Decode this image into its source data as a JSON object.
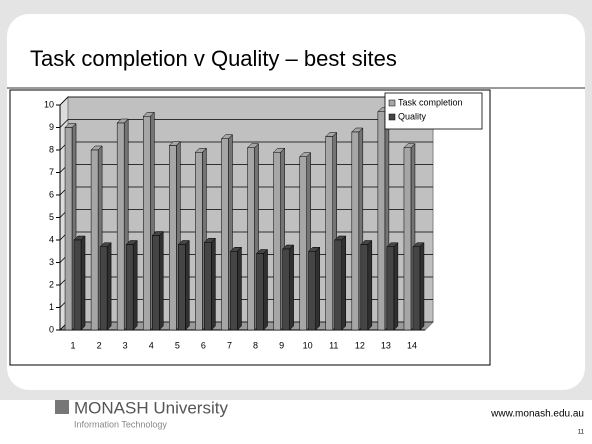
{
  "chart_data": {
    "type": "bar3d",
    "title": "Task completion v Quality – best sites",
    "categories": [
      "1",
      "2",
      "3",
      "4",
      "5",
      "6",
      "7",
      "8",
      "9",
      "10",
      "11",
      "12",
      "13",
      "14"
    ],
    "series": [
      {
        "name": "Task completion",
        "color": "#a6a6a6",
        "values": [
          9.0,
          8.0,
          9.2,
          9.5,
          8.2,
          7.9,
          8.5,
          8.1,
          7.9,
          7.7,
          8.6,
          8.8,
          9.7,
          8.1
        ]
      },
      {
        "name": "Quality",
        "color": "#454545",
        "values": [
          4.0,
          3.7,
          3.8,
          4.2,
          3.8,
          3.9,
          3.5,
          3.4,
          3.6,
          3.5,
          4.0,
          3.8,
          3.7,
          3.7
        ]
      }
    ],
    "ylim": [
      0,
      10
    ],
    "yticks": [
      0,
      1,
      2,
      3,
      4,
      5,
      6,
      7,
      8,
      9,
      10
    ],
    "grid": true,
    "legend": "top-right"
  },
  "footer": {
    "logo": "MONASH University",
    "sublogo": "Information Technology",
    "url": "www.monash.edu.au",
    "page": "11"
  }
}
